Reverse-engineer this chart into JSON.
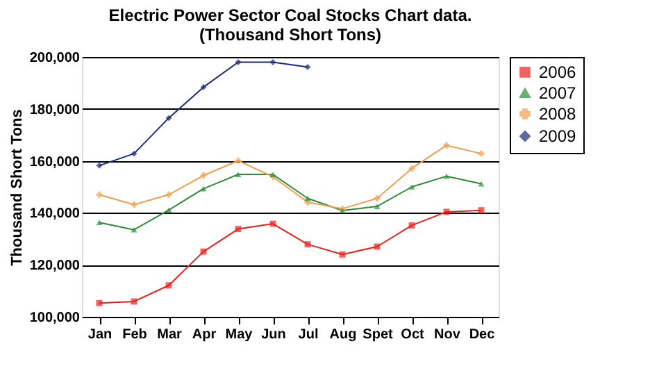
{
  "chart_data": {
    "type": "line",
    "title": [
      "Electric Power Sector Coal Stocks Chart data.",
      "(Thousand Short Tons)"
    ],
    "ylabel": "Thousand Short Tons",
    "categories": [
      "Jan",
      "Feb",
      "Mar",
      "Apr",
      "May",
      "Jun",
      "Jul",
      "Aug",
      "Spet",
      "Oct",
      "Nov",
      "Dec"
    ],
    "series": [
      {
        "name": "2006",
        "color": "#e8201c",
        "marker": "square",
        "values": [
          105300,
          105900,
          112100,
          125100,
          133800,
          135800,
          127900,
          124000,
          127000,
          135200,
          140400,
          141000
        ]
      },
      {
        "name": "2007",
        "color": "#2e8b3a",
        "marker": "triangle",
        "values": [
          136300,
          133500,
          141100,
          149300,
          154800,
          154800,
          145600,
          140900,
          142500,
          150000,
          154100,
          151200
        ]
      },
      {
        "name": "2008",
        "color": "#f0a050",
        "marker": "cross",
        "values": [
          147000,
          143200,
          147000,
          154400,
          160100,
          153900,
          144100,
          141600,
          145600,
          157100,
          166000,
          162800
        ]
      },
      {
        "name": "2009",
        "color": "#1c2a7a",
        "marker": "diamond",
        "values": [
          158200,
          162800,
          176500,
          188400,
          198000,
          198000,
          196100,
          null,
          null,
          null,
          null,
          null
        ]
      }
    ],
    "ylim": [
      100000,
      200000
    ],
    "yticks": [
      {
        "value": 100000,
        "label": "100,000"
      },
      {
        "value": 120000,
        "label": "120,000"
      },
      {
        "value": 140000,
        "label": "140,000"
      },
      {
        "value": 160000,
        "label": "160,000"
      },
      {
        "value": 180000,
        "label": "180,000"
      },
      {
        "value": 200000,
        "label": "200,000"
      }
    ],
    "grid": "y",
    "legend": "right"
  }
}
